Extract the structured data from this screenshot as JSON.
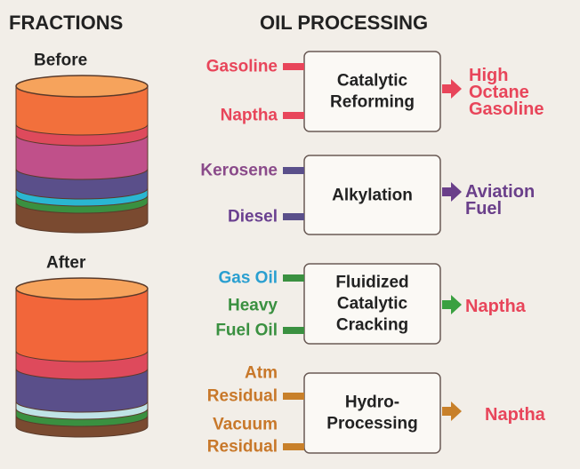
{
  "headers": {
    "fractions": "FRACTIONS",
    "processing": "OIL PROCESSING"
  },
  "cylinders": [
    "Before",
    "After"
  ],
  "processes": [
    {
      "inputs": [
        [
          "Gasoline"
        ],
        [
          "Naptha"
        ]
      ],
      "name": [
        "Catalytic",
        "Reforming"
      ],
      "output": [
        "High",
        "Octane",
        "Gasoline"
      ]
    },
    {
      "inputs": [
        [
          "Kerosene"
        ],
        [
          "Diesel"
        ]
      ],
      "name": [
        "Alkylation"
      ],
      "output": [
        "Aviation",
        "Fuel"
      ]
    },
    {
      "inputs": [
        [
          "Gas Oil"
        ],
        [
          "Heavy",
          "Fuel Oil"
        ]
      ],
      "name": [
        "Fluidized",
        "Catalytic",
        "Cracking"
      ],
      "output": [
        "Naptha"
      ]
    },
    {
      "inputs": [
        [
          "Atm",
          "Residual"
        ],
        [
          "Vacuum",
          "Residual"
        ]
      ],
      "name": [
        "Hydro-",
        "Processing"
      ],
      "output": [
        "Naptha"
      ]
    }
  ]
}
